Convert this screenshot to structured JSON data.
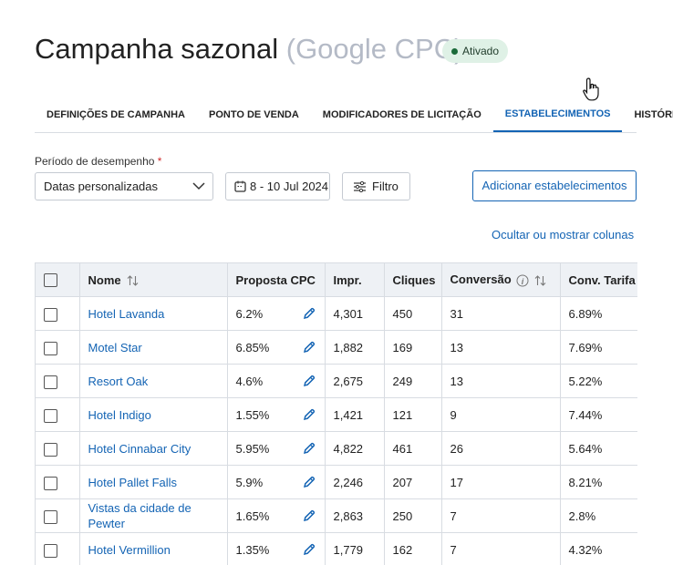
{
  "header": {
    "title": "Campanha sazonal",
    "subtitle": "(Google CPC)",
    "status": "Ativado"
  },
  "tabs": [
    {
      "label": "DEFINIÇÕES DE CAMPANHA",
      "active": false
    },
    {
      "label": "PONTO DE VENDA",
      "active": false
    },
    {
      "label": "MODIFICADORES DE LICITAÇÃO",
      "active": false
    },
    {
      "label": "ESTABELECIMENTOS",
      "active": true
    },
    {
      "label": "HISTÓRICO",
      "active": false
    }
  ],
  "filters": {
    "period_label": "Período de desempenho",
    "required_mark": "*",
    "range_select": "Datas personalizadas",
    "date": "8 - 10 Jul 2024",
    "filter_button": "Filtro",
    "add_button": "Adicionar estabelecimentos",
    "columns_link": "Ocultar ou mostrar colunas"
  },
  "table": {
    "columns": [
      "Nome",
      "Proposta CPC",
      "Impr.",
      "Cliques",
      "Conversão",
      "Conv. Tarifa"
    ],
    "rows": [
      [
        "Hotel Lavanda",
        "6.2%",
        "4,301",
        "450",
        "31",
        "6.89%"
      ],
      [
        "Motel Star",
        "6.85%",
        "1,882",
        "169",
        "13",
        "7.69%"
      ],
      [
        "Resort Oak",
        "4.6%",
        "2,675",
        "249",
        "13",
        "5.22%"
      ],
      [
        "Hotel Indigo",
        "1.55%",
        "1,421",
        "121",
        "9",
        "7.44%"
      ],
      [
        "Hotel Cinnabar City",
        "5.95%",
        "4,822",
        "461",
        "26",
        "5.64%"
      ],
      [
        "Hotel Pallet Falls",
        "5.9%",
        "2,246",
        "207",
        "17",
        "8.21%"
      ],
      [
        "Vistas da cidade de Pewter",
        "1.65%",
        "2,863",
        "250",
        "7",
        "2.8%"
      ],
      [
        "Hotel Vermillion",
        "1.35%",
        "1,779",
        "162",
        "7",
        "4.32%"
      ]
    ]
  }
}
